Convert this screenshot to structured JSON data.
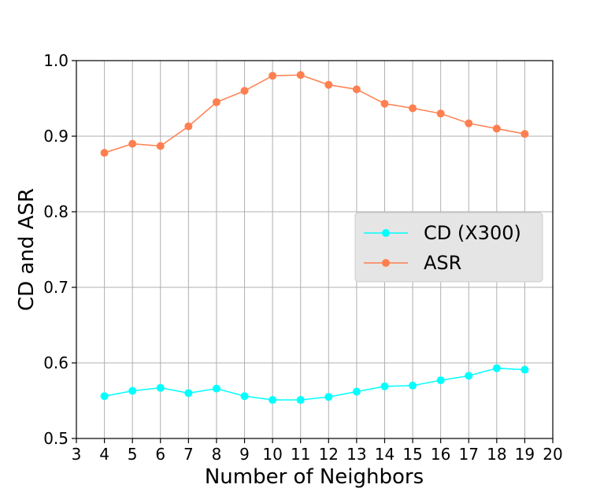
{
  "chart_data": {
    "type": "line",
    "xlabel": "Number of Neighbors",
    "ylabel": "CD and ASR",
    "xlim": [
      3,
      20
    ],
    "ylim": [
      0.5,
      1.0
    ],
    "xticks": [
      "3",
      "4",
      "5",
      "6",
      "7",
      "8",
      "9",
      "10",
      "11",
      "12",
      "13",
      "14",
      "15",
      "16",
      "17",
      "18",
      "19",
      "20"
    ],
    "yticks": [
      "0.5",
      "0.6",
      "0.7",
      "0.8",
      "0.9",
      "1.0"
    ],
    "grid": true,
    "legend_position": "center-right",
    "x": [
      4,
      5,
      6,
      7,
      8,
      9,
      10,
      11,
      12,
      13,
      14,
      15,
      16,
      17,
      18,
      19
    ],
    "series": [
      {
        "name": "CD (X300)",
        "color": "#00ffff",
        "values": [
          0.556,
          0.563,
          0.567,
          0.56,
          0.566,
          0.556,
          0.551,
          0.551,
          0.555,
          0.562,
          0.569,
          0.57,
          0.577,
          0.583,
          0.593,
          0.591
        ]
      },
      {
        "name": "ASR",
        "color": "#ff7f50",
        "values": [
          0.878,
          0.89,
          0.887,
          0.913,
          0.945,
          0.96,
          0.98,
          0.981,
          0.968,
          0.962,
          0.943,
          0.937,
          0.93,
          0.917,
          0.91,
          0.903
        ]
      }
    ]
  }
}
